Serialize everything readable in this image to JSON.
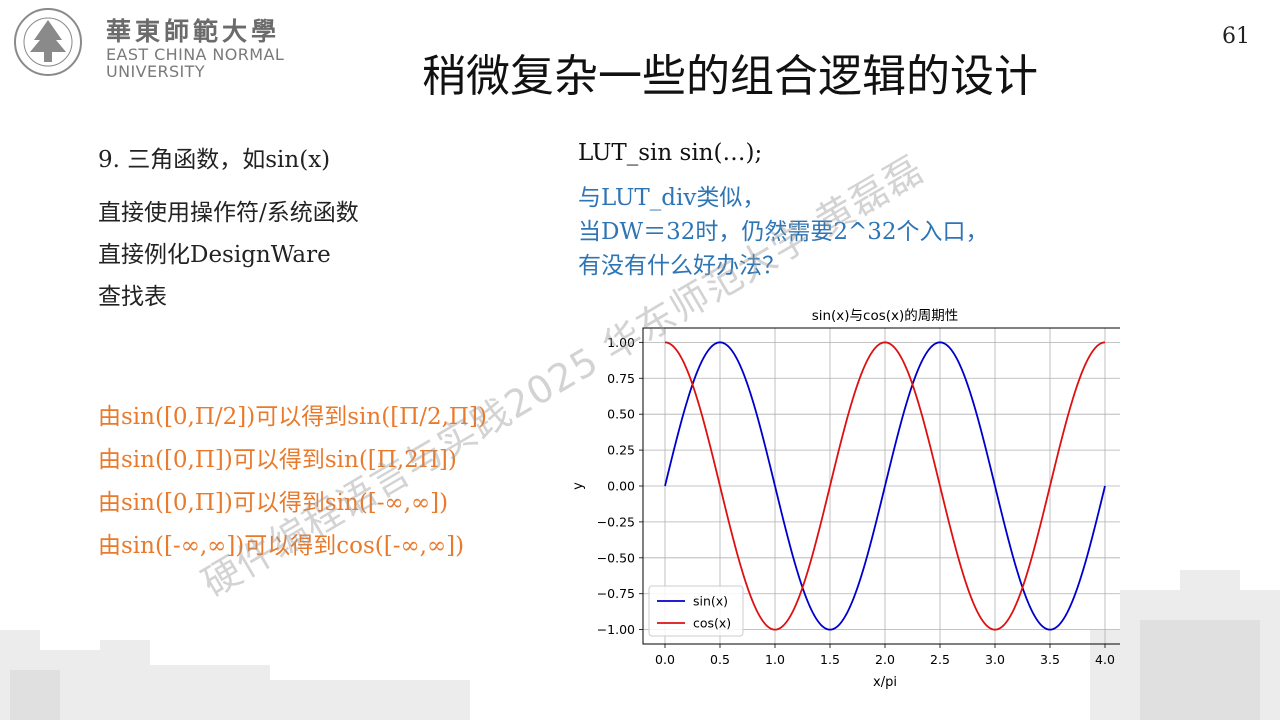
{
  "header": {
    "logo_cn": "華東師範大學",
    "logo_en_line1": "EAST CHINA NORMAL",
    "logo_en_line2": "UNIVERSITY",
    "page_number": "61"
  },
  "title": "稍微复杂一些的组合逻辑的设计",
  "left": {
    "item1": "9. 三角函数，如sin(x)",
    "lines": [
      "直接使用操作符/系统函数",
      "直接例化DesignWare",
      "查找表"
    ]
  },
  "orange_lines": [
    "由sin([0,Π/2])可以得到sin([Π/2,Π])",
    "由sin([0,Π])可以得到sin([Π,2Π])",
    "由sin([0,Π])可以得到sin([-∞,∞])",
    "由sin([-∞,∞])可以得到cos([-∞,∞])"
  ],
  "right": {
    "code": "LUT_sin sin(…);",
    "blue_lines": [
      "与LUT_div类似，",
      "当DW＝32时，仍然需要2^32个入口，",
      "有没有什么好办法？"
    ]
  },
  "watermark": "硬件编程语言与实践2025 华东师范大学 黄磊磊",
  "colors": {
    "orange": "#ea7a2b",
    "blue": "#2e75b6",
    "sin": "#0000cc",
    "cos": "#dd1111"
  },
  "chart_data": {
    "type": "line",
    "title": "sin(x)与cos(x)的周期性",
    "xlabel": "x/pi",
    "ylabel": "y",
    "xlim": [
      0,
      4
    ],
    "ylim": [
      -1,
      1
    ],
    "xticks": [
      "0.0",
      "0.5",
      "1.0",
      "1.5",
      "2.0",
      "2.5",
      "3.0",
      "3.5",
      "4.0"
    ],
    "yticks": [
      "1.00",
      "0.75",
      "0.50",
      "0.25",
      "0.00",
      "−0.25",
      "−0.50",
      "−0.75",
      "−1.00"
    ],
    "grid": true,
    "legend": "lower-left",
    "series": [
      {
        "name": "sin(x)",
        "function": "sin(pi*x)",
        "color": "#0000cc"
      },
      {
        "name": "cos(x)",
        "function": "cos(pi*x)",
        "color": "#dd1111"
      }
    ]
  }
}
